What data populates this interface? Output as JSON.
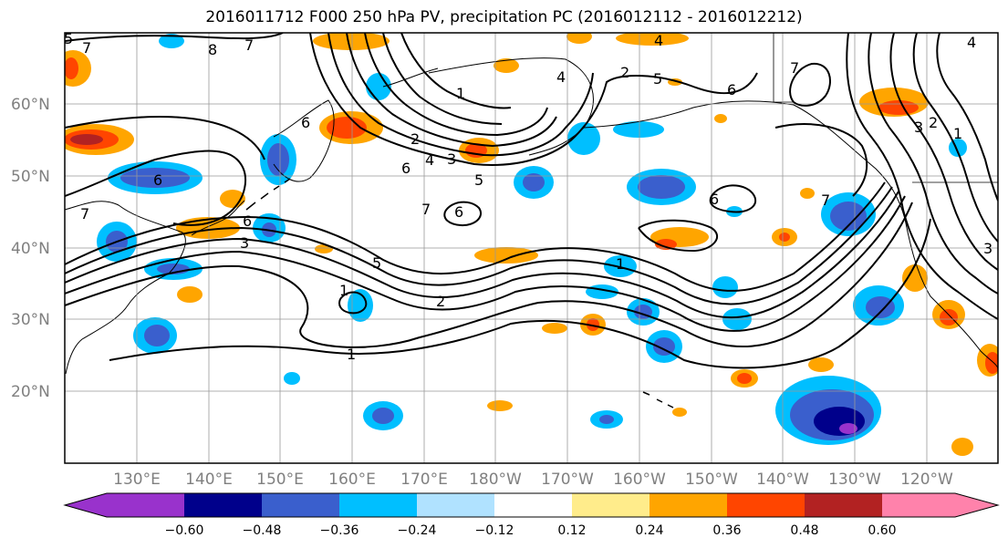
{
  "title": "2016011712 F000 250 hPa PV, precipitation PC (2016012112 - 2016012212)",
  "lat_labels": [
    {
      "text": "60°N",
      "lat": 60
    },
    {
      "text": "50°N",
      "lat": 50
    },
    {
      "text": "40°N",
      "lat": 40
    },
    {
      "text": "30°N",
      "lat": 30
    },
    {
      "text": "20°N",
      "lat": 20
    }
  ],
  "lon_labels": [
    {
      "text": "130°E",
      "lon": 130
    },
    {
      "text": "140°E",
      "lon": 140
    },
    {
      "text": "150°E",
      "lon": 150
    },
    {
      "text": "160°E",
      "lon": 160
    },
    {
      "text": "170°E",
      "lon": 170
    },
    {
      "text": "180°W",
      "lon": 180
    },
    {
      "text": "170°W",
      "lon": 190
    },
    {
      "text": "160°W",
      "lon": 200
    },
    {
      "text": "150°W",
      "lon": 210
    },
    {
      "text": "140°W",
      "lon": 220
    },
    {
      "text": "130°W",
      "lon": 230
    },
    {
      "text": "120°W",
      "lon": 240
    }
  ],
  "extent": {
    "lon_min": 120,
    "lon_max": 250,
    "lat_min": 10,
    "lat_max": 70
  },
  "colorbar": {
    "ticks": [
      "−0.60",
      "−0.48",
      "−0.36",
      "−0.24",
      "−0.12",
      "0.12",
      "0.24",
      "0.36",
      "0.48",
      "0.60"
    ],
    "colors": [
      "#9932cc",
      "#00008b",
      "#3a5fcd",
      "#00bfff",
      "#b0e2ff",
      "#ffffff",
      "#ffec8b",
      "#ffa500",
      "#ff4500",
      "#b22222",
      "#ff82ab"
    ]
  },
  "contour_labels": [
    "7",
    "8",
    "7",
    "6",
    "4",
    "5",
    "6",
    "1",
    "2",
    "4",
    "3",
    "5",
    "6",
    "7",
    "6",
    "5",
    "1",
    "2",
    "1",
    "6",
    "3",
    "6",
    "7",
    "7",
    "3",
    "2",
    "1",
    "1",
    "2",
    "3",
    "4",
    "7",
    "6",
    "5",
    "4"
  ],
  "colors": {
    "positive_mid": "#ffa500",
    "negative_mid": "#00bfff",
    "contour": "#000000",
    "grid": "#999999"
  }
}
